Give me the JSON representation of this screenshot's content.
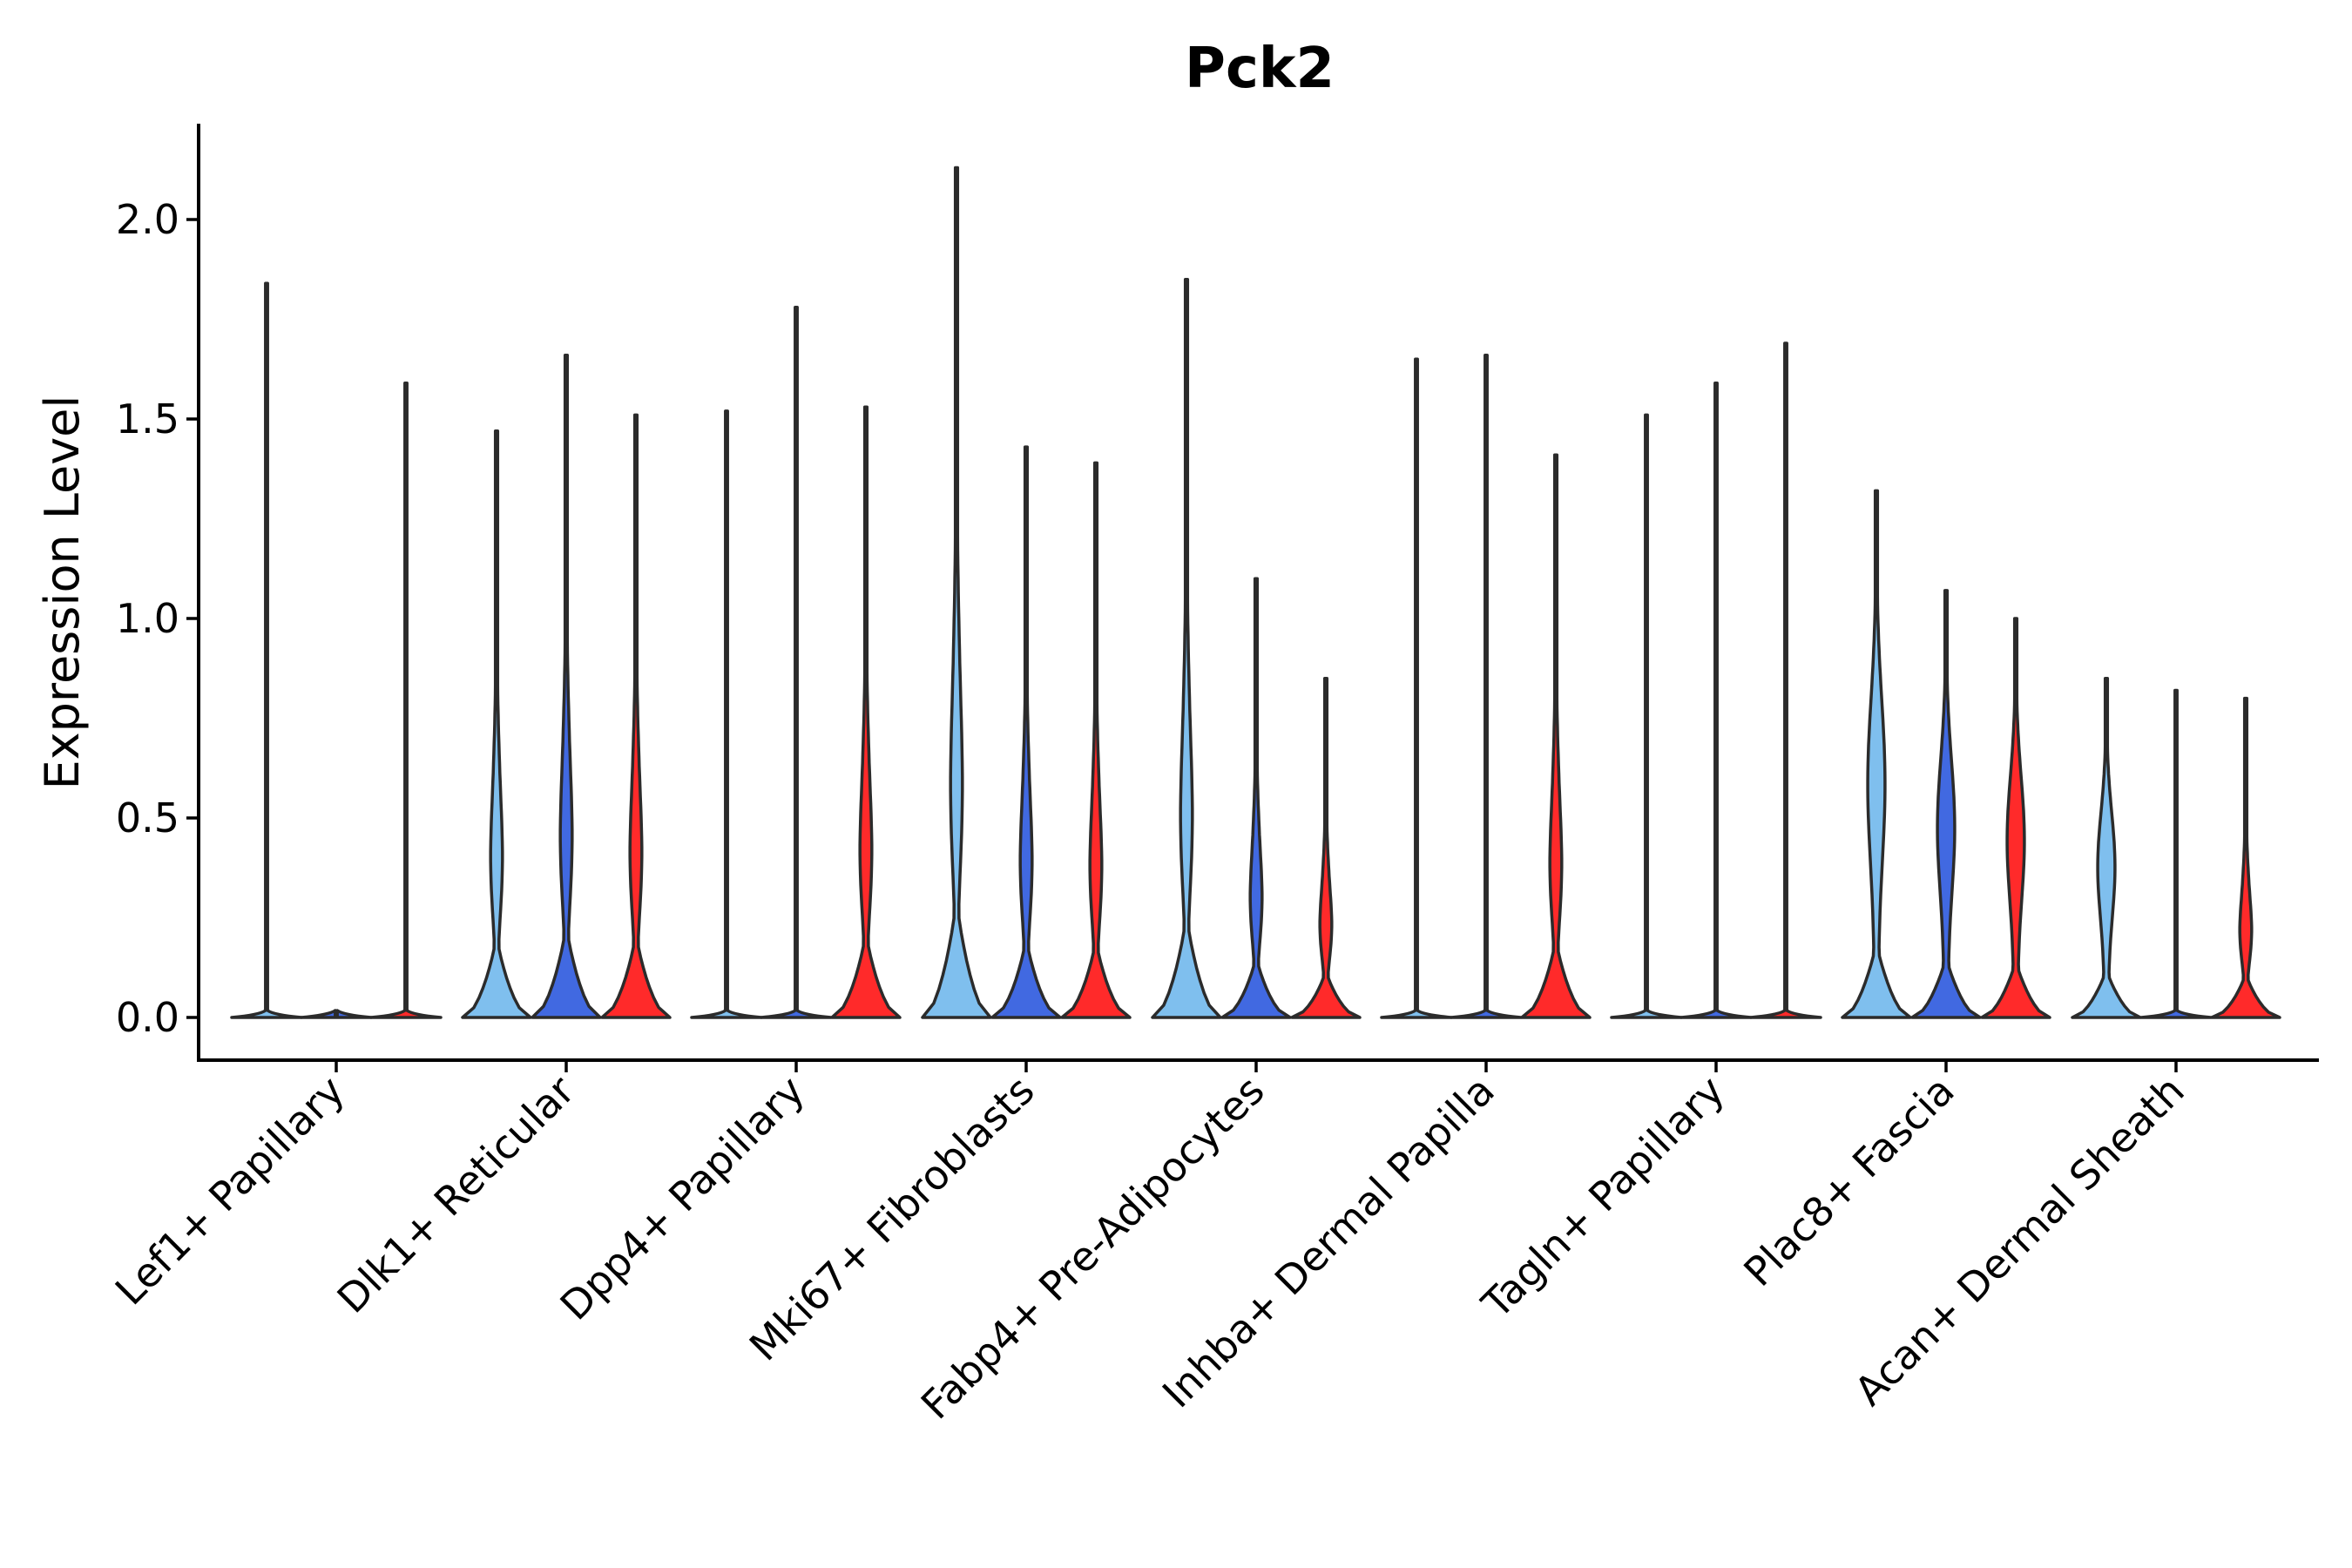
{
  "chart_data": {
    "type": "violin",
    "title": "Pck2",
    "ylabel": "Expression Level",
    "xlabel": "",
    "ylim": [
      -0.11,
      2.25
    ],
    "yticks": [
      0.0,
      0.5,
      1.0,
      1.5,
      2.0
    ],
    "ytick_labels": [
      "0.0",
      "0.5",
      "1.0",
      "1.5",
      "2.0"
    ],
    "grid": false,
    "legend": "none",
    "series_colors": [
      "#7fbfee",
      "#4169e1",
      "#ff2a2a"
    ],
    "categories": [
      "Lef1+ Papillary",
      "Dlk1+ Reticular",
      "Dpp4+ Papillary",
      "Mki67+ Fibroblasts",
      "Fabp4+ Pre-Adipocytes",
      "Inhba+ Dermal Papilla",
      "Tagln+ Papillary",
      "Plac8+ Fascia",
      "Acan+ Dermal Sheath"
    ],
    "violins": [
      [
        {
          "max": 1.84,
          "shape": "flat"
        },
        {
          "max": 0.0,
          "shape": "flat"
        },
        {
          "max": 1.59,
          "shape": "flat"
        }
      ],
      [
        {
          "max": 1.47,
          "shape": "bulk"
        },
        {
          "max": 1.66,
          "shape": "bulk"
        },
        {
          "max": 1.51,
          "shape": "bulk"
        }
      ],
      [
        {
          "max": 1.52,
          "shape": "flat"
        },
        {
          "max": 1.78,
          "shape": "flat"
        },
        {
          "max": 1.53,
          "shape": "bulk"
        }
      ],
      [
        {
          "max": 2.13,
          "shape": "bulk"
        },
        {
          "max": 1.43,
          "shape": "bulk"
        },
        {
          "max": 1.39,
          "shape": "bulk"
        }
      ],
      [
        {
          "max": 1.85,
          "shape": "bulk"
        },
        {
          "max": 1.1,
          "shape": "bulk"
        },
        {
          "max": 0.85,
          "shape": "bulk"
        }
      ],
      [
        {
          "max": 1.65,
          "shape": "flat"
        },
        {
          "max": 1.66,
          "shape": "flat"
        },
        {
          "max": 1.41,
          "shape": "bulk"
        }
      ],
      [
        {
          "max": 1.51,
          "shape": "flat"
        },
        {
          "max": 1.59,
          "shape": "flat"
        },
        {
          "max": 1.69,
          "shape": "flat"
        }
      ],
      [
        {
          "max": 1.32,
          "shape": "wide"
        },
        {
          "max": 1.07,
          "shape": "wide"
        },
        {
          "max": 1.0,
          "shape": "wide"
        }
      ],
      [
        {
          "max": 0.85,
          "shape": "wide"
        },
        {
          "max": 0.82,
          "shape": "flat"
        },
        {
          "max": 0.8,
          "shape": "bulk"
        }
      ]
    ]
  }
}
